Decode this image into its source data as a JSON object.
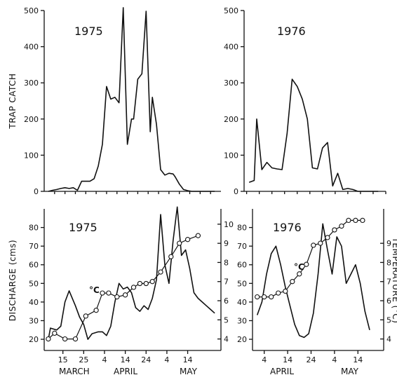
{
  "chart_data": [
    {
      "type": "line",
      "panel": "trap-catch-1975",
      "panel_label": "1975",
      "ylabel": "TRAP CATCH",
      "ylim": [
        0,
        500
      ],
      "yticks": [
        0,
        100,
        200,
        300,
        400,
        500
      ],
      "x_unit": "day-of-year",
      "xlim": [
        65,
        150
      ],
      "series": [
        {
          "x": [
            67,
            69,
            71,
            73,
            75,
            77,
            79,
            81,
            83,
            85,
            87,
            89,
            91,
            93,
            95,
            97,
            99,
            101,
            103,
            105,
            107,
            108,
            110,
            112,
            114,
            116,
            117,
            119,
            121,
            123,
            125,
            127,
            128,
            130,
            132,
            134,
            136,
            138,
            140,
            142,
            144,
            146,
            147
          ],
          "y": [
            0,
            3,
            5,
            8,
            10,
            8,
            10,
            3,
            28,
            28,
            28,
            35,
            70,
            130,
            290,
            255,
            260,
            245,
            508,
            130,
            200,
            200,
            310,
            325,
            498,
            165,
            260,
            185,
            60,
            45,
            50,
            48,
            40,
            20,
            5,
            2,
            0,
            0,
            0,
            0,
            0,
            0,
            0
          ]
        }
      ]
    },
    {
      "type": "line",
      "panel": "trap-catch-1976",
      "panel_label": "1976",
      "ylim": [
        0,
        500
      ],
      "yticks": [
        0,
        100,
        200,
        300,
        400,
        500
      ],
      "x_unit": "day-of-year",
      "xlim": [
        89,
        145
      ],
      "series": [
        {
          "x": [
            91,
            93,
            94,
            96,
            98,
            100,
            102,
            104,
            106,
            108,
            110,
            112,
            114,
            116,
            118,
            120,
            122,
            124,
            126,
            128,
            130,
            132,
            134,
            136,
            138,
            140,
            142
          ],
          "y": [
            25,
            30,
            200,
            60,
            80,
            65,
            62,
            60,
            160,
            310,
            290,
            255,
            200,
            65,
            62,
            120,
            135,
            15,
            50,
            5,
            8,
            5,
            0,
            0,
            0,
            0,
            0
          ]
        }
      ]
    },
    {
      "type": "line",
      "panel": "discharge-1975",
      "panel_label": "1975",
      "ylabel": "DISCHARGE (cms)",
      "ylim": [
        14,
        90
      ],
      "yticks": [
        20,
        30,
        40,
        50,
        60,
        70,
        80
      ],
      "x_unit": "day-of-year",
      "xlim": [
        65,
        150
      ],
      "xtick_labels": [
        "15",
        "25",
        "4",
        "14",
        "24",
        "4",
        "14"
      ],
      "month_labels": [
        "MARCH",
        "APRIL",
        "MAY"
      ],
      "temp_ylabel": "",
      "temp_ylim": [
        3.4,
        10.8
      ],
      "temp_yticks": [
        4,
        5,
        6,
        7,
        8,
        9,
        10
      ],
      "series": [
        {
          "name": "discharge",
          "x": [
            67,
            68,
            71,
            73,
            75,
            77,
            80,
            82,
            84,
            86,
            88,
            91,
            93,
            95,
            97,
            99,
            101,
            103,
            105,
            107,
            109,
            111,
            113,
            115,
            117,
            119,
            121,
            123,
            125,
            127,
            129,
            131,
            133,
            135,
            137,
            139,
            141,
            143,
            145,
            147
          ],
          "y": [
            20,
            26,
            25,
            27,
            40,
            46,
            38,
            32,
            28,
            20,
            23,
            24,
            24,
            22,
            27,
            40,
            50,
            47,
            48,
            45,
            37,
            35,
            38,
            36,
            42,
            52,
            87,
            60,
            50,
            73,
            91,
            65,
            68,
            58,
            45,
            42,
            40,
            38,
            36,
            34
          ]
        },
        {
          "name": "°C",
          "axis": "temperature",
          "x": [
            67,
            70,
            75,
            80,
            85,
            90,
            93,
            96,
            100,
            104,
            108,
            111,
            114,
            117,
            121,
            126,
            130,
            134,
            139
          ],
          "y": [
            4.0,
            4.3,
            4.0,
            4.0,
            5.2,
            5.5,
            6.4,
            6.4,
            6.2,
            6.3,
            6.7,
            6.9,
            6.9,
            7.0,
            7.5,
            8.3,
            9.0,
            9.2,
            9.4
          ]
        }
      ]
    },
    {
      "type": "line",
      "panel": "discharge-1976",
      "panel_label": "1976",
      "ylim": [
        14,
        90
      ],
      "yticks": [
        20,
        30,
        40,
        50,
        60,
        70,
        80
      ],
      "x_unit": "day-of-year",
      "xlim": [
        89,
        145
      ],
      "xtick_labels": [
        "4",
        "14",
        "24",
        "4",
        "14"
      ],
      "month_labels": [
        "APRIL",
        "MAY"
      ],
      "temp_ylabel": "TEMPERATURE (°C)",
      "temp_ylim": [
        3.4,
        10.8
      ],
      "temp_yticks": [
        4,
        5,
        6,
        7,
        8,
        9
      ],
      "annotation": "°C",
      "series": [
        {
          "name": "discharge",
          "x": [
            91,
            93,
            95,
            97,
            99,
            101,
            103,
            105,
            107,
            109,
            111,
            113,
            115,
            117,
            119,
            121,
            123,
            125,
            127,
            129,
            131,
            133,
            135,
            137,
            139
          ],
          "y": [
            33,
            40,
            55,
            66,
            70,
            60,
            48,
            38,
            28,
            22,
            21,
            23,
            34,
            55,
            82,
            68,
            55,
            75,
            70,
            50,
            55,
            60,
            50,
            35,
            25
          ]
        },
        {
          "name": "°C",
          "axis": "temperature",
          "x": [
            91,
            94,
            97,
            100,
            103,
            106,
            109,
            112,
            115,
            118,
            121,
            124,
            127,
            130,
            133,
            136
          ],
          "y": [
            6.2,
            6.2,
            6.2,
            6.4,
            6.5,
            7.0,
            7.4,
            7.9,
            8.9,
            9.0,
            9.3,
            9.7,
            9.9,
            10.2,
            10.2,
            10.2
          ]
        }
      ]
    }
  ]
}
